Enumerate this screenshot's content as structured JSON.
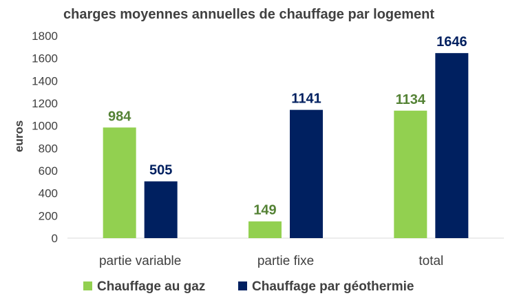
{
  "chart_data": {
    "type": "bar",
    "title": "charges moyennes annuelles de chauffage par logement",
    "xlabel": "",
    "ylabel": "euros",
    "ylim": [
      0,
      1800
    ],
    "yticks": [
      0,
      200,
      400,
      600,
      800,
      1000,
      1200,
      1400,
      1600,
      1800
    ],
    "categories": [
      "partie variable",
      "partie fixe",
      "total"
    ],
    "series": [
      {
        "name": "Chauffage au gaz",
        "color": "#92d050",
        "label_color": "#548235",
        "values": [
          984,
          149,
          1134
        ]
      },
      {
        "name": "Chauffage par géothermie",
        "color": "#002060",
        "label_color": "#002060",
        "values": [
          505,
          1141,
          1646
        ]
      }
    ],
    "grid": false,
    "legend_position": "bottom"
  }
}
